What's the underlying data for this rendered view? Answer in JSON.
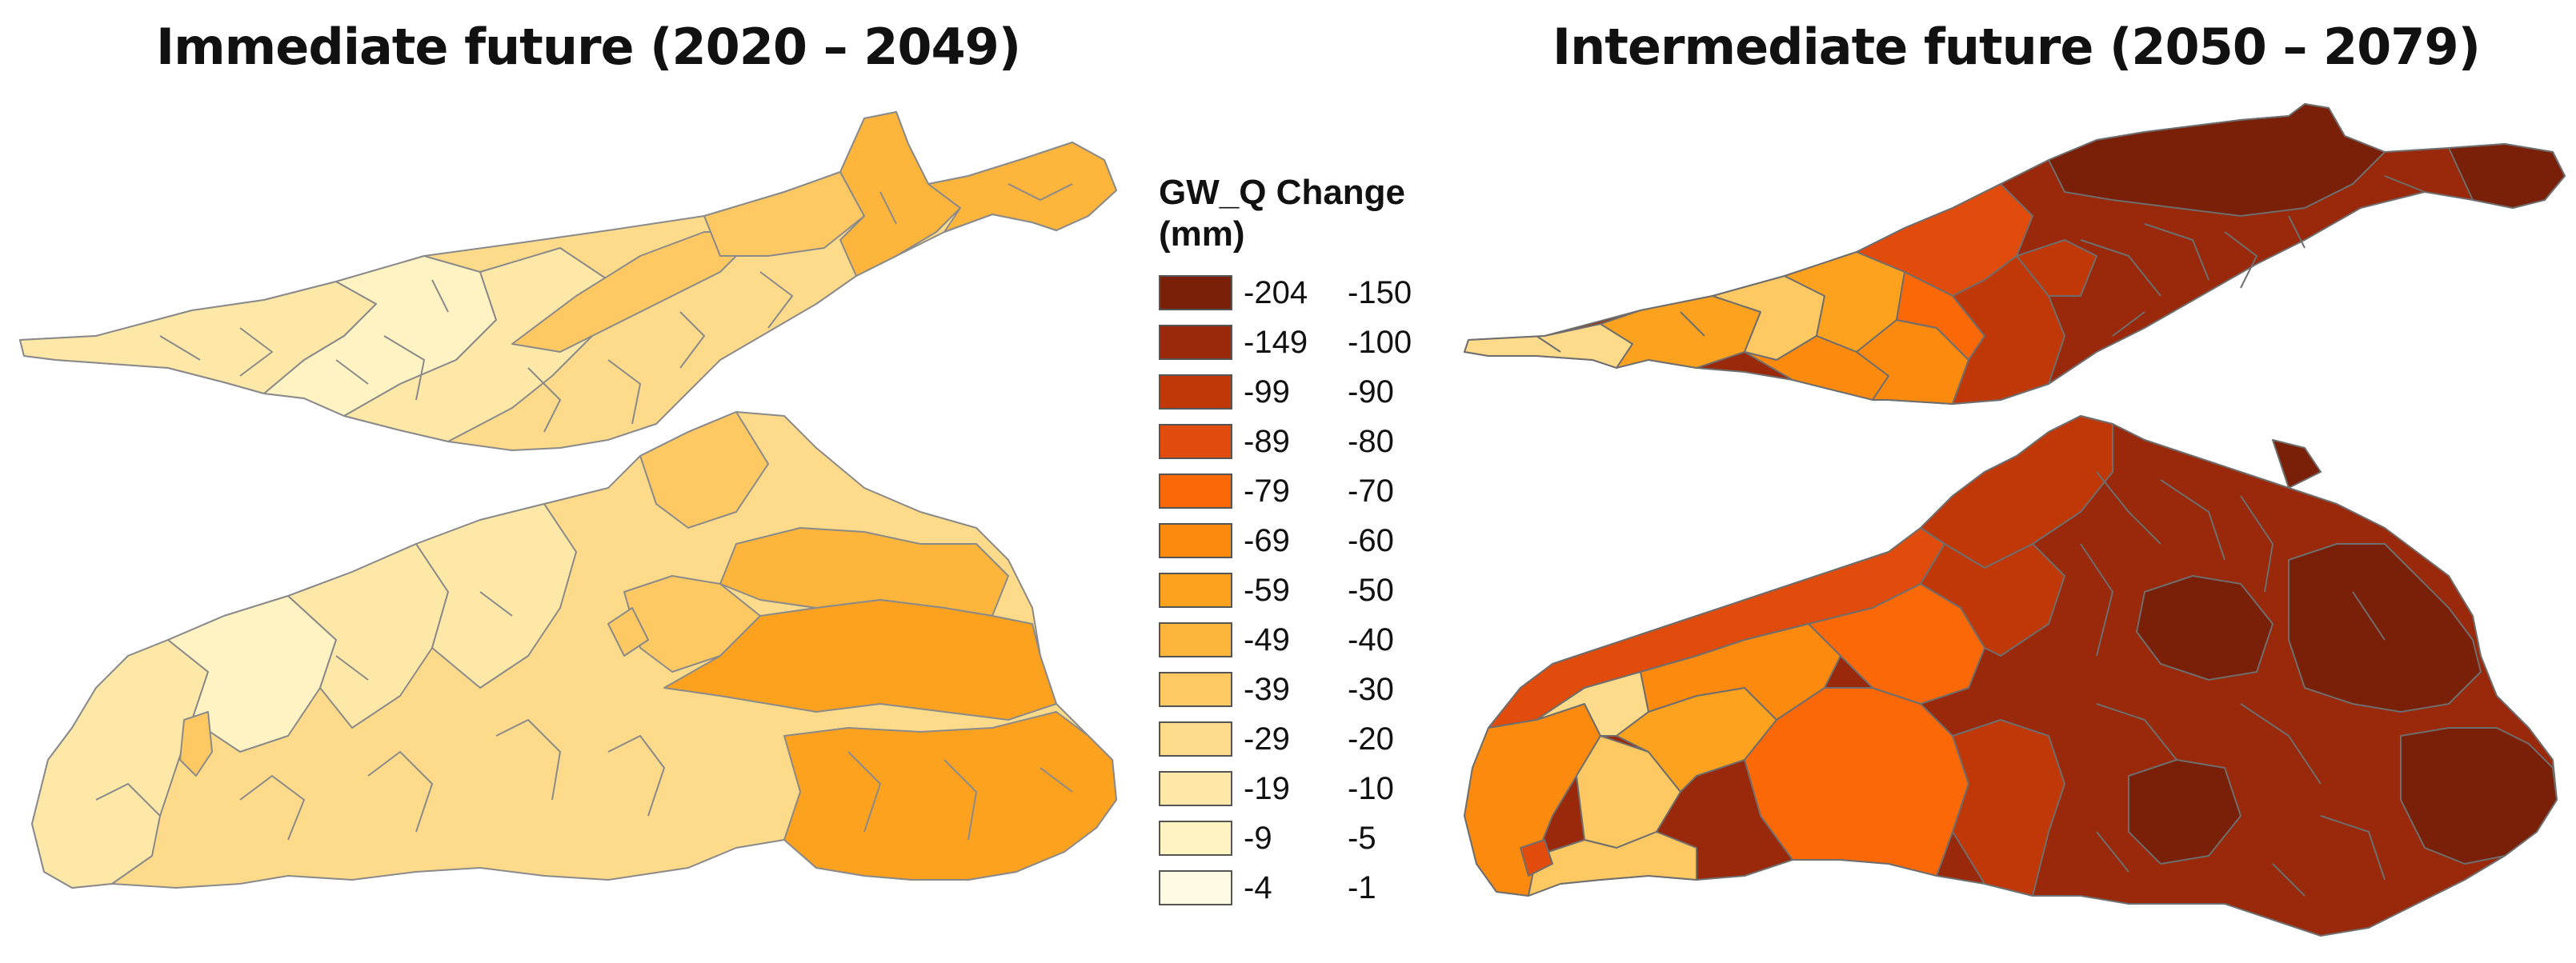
{
  "titles": {
    "left": "Immediate future (2020 – 2049)",
    "right": "Intermediate future (2050 – 2079)"
  },
  "legend": {
    "title_line1": "GW_Q Change",
    "title_line2": "(mm)",
    "classes": [
      {
        "from": "-204",
        "to": "-150",
        "color": "#7a1f08"
      },
      {
        "from": "-149",
        "to": "-100",
        "color": "#99290a"
      },
      {
        "from": "-99",
        "to": "-90",
        "color": "#c03808"
      },
      {
        "from": "-89",
        "to": "-80",
        "color": "#e14b0b"
      },
      {
        "from": "-79",
        "to": "-70",
        "color": "#fa6808"
      },
      {
        "from": "-69",
        "to": "-60",
        "color": "#fc8a0e"
      },
      {
        "from": "-59",
        "to": "-50",
        "color": "#fda21e"
      },
      {
        "from": "-49",
        "to": "-40",
        "color": "#feb53c"
      },
      {
        "from": "-39",
        "to": "-30",
        "color": "#fec962"
      },
      {
        "from": "-29",
        "to": "-20",
        "color": "#fedb8a"
      },
      {
        "from": "-19",
        "to": "-10",
        "color": "#fee8a8"
      },
      {
        "from": "-9",
        "to": "-5",
        "color": "#fff3c4"
      },
      {
        "from": "-4",
        "to": "-1",
        "color": "#fffbe2"
      }
    ]
  }
}
